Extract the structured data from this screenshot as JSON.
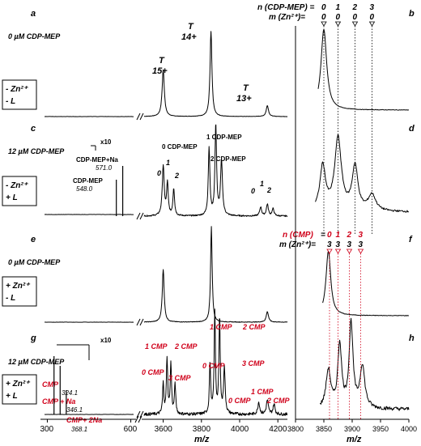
{
  "chart_data": {
    "type": "line",
    "title": "",
    "panels": [
      {
        "id": "a",
        "conc": "0 µM CDP-MEP",
        "cond": [
          "- Zn²⁺",
          "- L"
        ]
      },
      {
        "id": "b"
      },
      {
        "id": "c",
        "conc": "12 µM CDP-MEP",
        "cond": [
          "- Zn²⁺",
          "+ L"
        ]
      },
      {
        "id": "d"
      },
      {
        "id": "e",
        "conc": "0 µM CDP-MEP",
        "cond": [
          "+ Zn²⁺",
          "- L"
        ]
      },
      {
        "id": "f"
      },
      {
        "id": "g",
        "conc": "12 µM CDP-MEP",
        "cond": [
          "+ Zn²⁺",
          "+ L"
        ]
      },
      {
        "id": "h"
      }
    ],
    "charge_states": [
      {
        "label": "T",
        "sub": "15+",
        "x": 3600
      },
      {
        "label": "T",
        "sub": "14+",
        "x": 3850
      },
      {
        "label": "T",
        "sub": "13+",
        "x": 4145
      }
    ],
    "header_b": {
      "n_label": "n (CDP-MEP) =",
      "m_label": "m (Zn²⁺)=",
      "n_values": [
        "0",
        "1",
        "2",
        "3"
      ],
      "m_values": [
        "0",
        "0",
        "0",
        "0"
      ],
      "x": [
        3850,
        3875,
        3905,
        3935
      ]
    },
    "header_f": {
      "n_label": "n (CMP)",
      "eq": "=",
      "m_label": "m (Zn²⁺)=",
      "n_values": [
        "0",
        "1",
        "2",
        "3"
      ],
      "m_values": [
        "3",
        "3",
        "3",
        "3"
      ],
      "x": [
        3860,
        3875,
        3895,
        3915
      ]
    },
    "panel_c_labels": {
      "x10": "x10",
      "peak1_name": "CDP-MEP+Na",
      "peak1_val": "571.0",
      "peak2_name": "CDP-MEP",
      "peak2_val": "548.0",
      "adducts_14": [
        "0 CDP-MEP",
        "1 CDP-MEP",
        "2 CDP-MEP"
      ],
      "adducts_15": [
        "0",
        "1",
        "2"
      ],
      "adducts_13": [
        "0",
        "1",
        "2"
      ]
    },
    "panel_g_labels": {
      "x10": "x10",
      "p1_name": "CMP",
      "p1_val": "324.1",
      "p2_name": "CMP + Na",
      "p2_val": "346.1",
      "p3_name": "CMP+ 2Na",
      "p3_val": "368.1",
      "adducts_15": [
        "0 CMP",
        "1 CMP",
        "2 CMP",
        "3 CMP"
      ],
      "adducts_14": [
        "0 CMP",
        "1 CMP",
        "2 CMP",
        "3 CMP"
      ],
      "adducts_13": [
        "0 CMP",
        "1 CMP",
        "2 CMP"
      ]
    },
    "x_axis_left": {
      "ticks_low": [
        "300",
        "600"
      ],
      "ticks_high": [
        "3600",
        "3800",
        "4000",
        "4200"
      ],
      "label": "m/z"
    },
    "x_axis_right": {
      "ticks": [
        "3800",
        "3850",
        "3900",
        "3950",
        "4000"
      ],
      "label": "m/z",
      "range": [
        3800,
        4000
      ]
    }
  }
}
